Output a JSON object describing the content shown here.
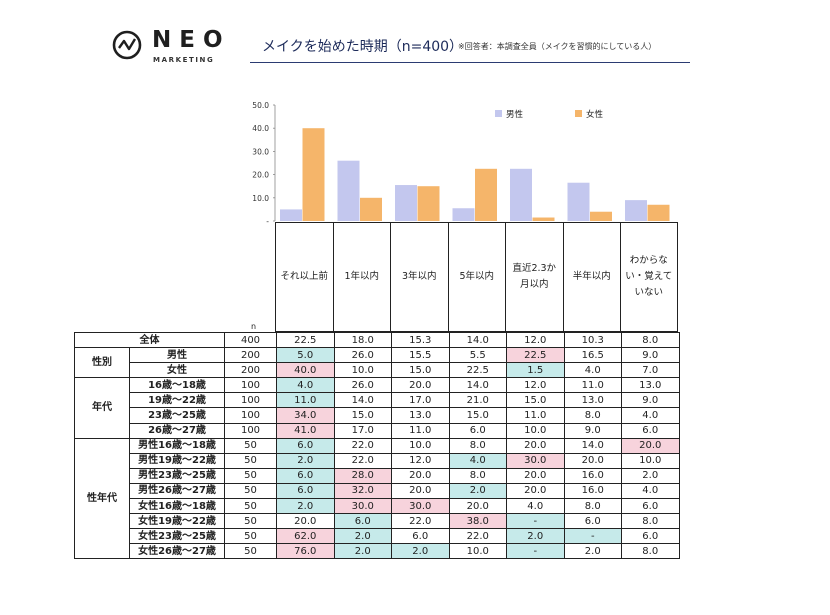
{
  "header": {
    "logo_word": "NEO",
    "logo_sub": "MARKETING",
    "title": "メイクを始めた時期（n=400）",
    "note": "※回答者：本調査全員（メイクを習慣的にしている人）"
  },
  "colors": {
    "male": "#c3c7ee",
    "female": "#f5b56a",
    "highlight_low": "#c6eaea",
    "highlight_high": "#f7d3dc",
    "title": "#1d2b5a"
  },
  "chart_data": {
    "type": "bar",
    "categories": [
      "それ以上前",
      "1年以内",
      "3年以内",
      "5年以内",
      "直近2.3か月以内",
      "半年以内",
      "わからない・覚えていない"
    ],
    "series": [
      {
        "name": "男性",
        "values": [
          5.0,
          26.0,
          15.5,
          5.5,
          22.5,
          16.5,
          9.0
        ]
      },
      {
        "name": "女性",
        "values": [
          40.0,
          10.0,
          15.0,
          22.5,
          1.5,
          4.0,
          7.0
        ]
      }
    ],
    "y_ticks": [
      "50.0",
      "40.0",
      "30.0",
      "20.0",
      "10.0",
      "-"
    ],
    "ylim": [
      0,
      50
    ],
    "legend_position": "top-right"
  },
  "table": {
    "n_header": "n",
    "columns": [
      "それ以上前",
      "1年以内",
      "3年以内",
      "5年以内",
      "直近2.3か月以内",
      "半年以内",
      "わからない・覚えていない"
    ],
    "rows": [
      {
        "group": "",
        "label": "全体",
        "n": "400",
        "values": [
          "22.5",
          "18.0",
          "15.3",
          "14.0",
          "12.0",
          "10.3",
          "8.0"
        ],
        "hl": [
          "",
          "",
          "",
          "",
          "",
          "",
          ""
        ]
      },
      {
        "group": "性別",
        "span": 2,
        "label": "男性",
        "n": "200",
        "values": [
          "5.0",
          "26.0",
          "15.5",
          "5.5",
          "22.5",
          "16.5",
          "9.0"
        ],
        "hl": [
          "b",
          "",
          "",
          "",
          "p",
          "",
          ""
        ]
      },
      {
        "label": "女性",
        "n": "200",
        "values": [
          "40.0",
          "10.0",
          "15.0",
          "22.5",
          "1.5",
          "4.0",
          "7.0"
        ],
        "hl": [
          "p",
          "",
          "",
          "",
          "b",
          "",
          ""
        ]
      },
      {
        "group": "年代",
        "span": 4,
        "label": "16歳～18歳",
        "n": "100",
        "values": [
          "4.0",
          "26.0",
          "20.0",
          "14.0",
          "12.0",
          "11.0",
          "13.0"
        ],
        "hl": [
          "b",
          "",
          "",
          "",
          "",
          "",
          ""
        ]
      },
      {
        "label": "19歳～22歳",
        "n": "100",
        "values": [
          "11.0",
          "14.0",
          "17.0",
          "21.0",
          "15.0",
          "13.0",
          "9.0"
        ],
        "hl": [
          "b",
          "",
          "",
          "",
          "",
          "",
          ""
        ]
      },
      {
        "label": "23歳～25歳",
        "n": "100",
        "values": [
          "34.0",
          "15.0",
          "13.0",
          "15.0",
          "11.0",
          "8.0",
          "4.0"
        ],
        "hl": [
          "p",
          "",
          "",
          "",
          "",
          "",
          ""
        ]
      },
      {
        "label": "26歳～27歳",
        "n": "100",
        "values": [
          "41.0",
          "17.0",
          "11.0",
          "6.0",
          "10.0",
          "9.0",
          "6.0"
        ],
        "hl": [
          "p",
          "",
          "",
          "",
          "",
          "",
          ""
        ]
      },
      {
        "group": "性年代",
        "span": 8,
        "label": "男性16歳～18歳",
        "n": "50",
        "values": [
          "6.0",
          "22.0",
          "10.0",
          "8.0",
          "20.0",
          "14.0",
          "20.0"
        ],
        "hl": [
          "b",
          "",
          "",
          "",
          "",
          "",
          "p"
        ]
      },
      {
        "label": "男性19歳～22歳",
        "n": "50",
        "values": [
          "2.0",
          "22.0",
          "12.0",
          "4.0",
          "30.0",
          "20.0",
          "10.0"
        ],
        "hl": [
          "b",
          "",
          "",
          "b",
          "p",
          "",
          ""
        ]
      },
      {
        "label": "男性23歳～25歳",
        "n": "50",
        "values": [
          "6.0",
          "28.0",
          "20.0",
          "8.0",
          "20.0",
          "16.0",
          "2.0"
        ],
        "hl": [
          "b",
          "p",
          "",
          "",
          "",
          "",
          ""
        ]
      },
      {
        "label": "男性26歳～27歳",
        "n": "50",
        "values": [
          "6.0",
          "32.0",
          "20.0",
          "2.0",
          "20.0",
          "16.0",
          "4.0"
        ],
        "hl": [
          "b",
          "p",
          "",
          "b",
          "",
          "",
          ""
        ]
      },
      {
        "label": "女性16歳～18歳",
        "n": "50",
        "values": [
          "2.0",
          "30.0",
          "30.0",
          "20.0",
          "4.0",
          "8.0",
          "6.0"
        ],
        "hl": [
          "b",
          "p",
          "p",
          "",
          "",
          "",
          ""
        ]
      },
      {
        "label": "女性19歳～22歳",
        "n": "50",
        "values": [
          "20.0",
          "6.0",
          "22.0",
          "38.0",
          "-",
          "6.0",
          "8.0"
        ],
        "hl": [
          "",
          "b",
          "",
          "p",
          "b",
          "",
          ""
        ]
      },
      {
        "label": "女性23歳～25歳",
        "n": "50",
        "values": [
          "62.0",
          "2.0",
          "6.0",
          "22.0",
          "2.0",
          "-",
          "6.0"
        ],
        "hl": [
          "p",
          "b",
          "",
          "",
          "b",
          "b",
          ""
        ]
      },
      {
        "label": "女性26歳～27歳",
        "n": "50",
        "values": [
          "76.0",
          "2.0",
          "2.0",
          "10.0",
          "-",
          "2.0",
          "8.0"
        ],
        "hl": [
          "p",
          "b",
          "b",
          "",
          "b",
          "",
          ""
        ]
      }
    ]
  }
}
